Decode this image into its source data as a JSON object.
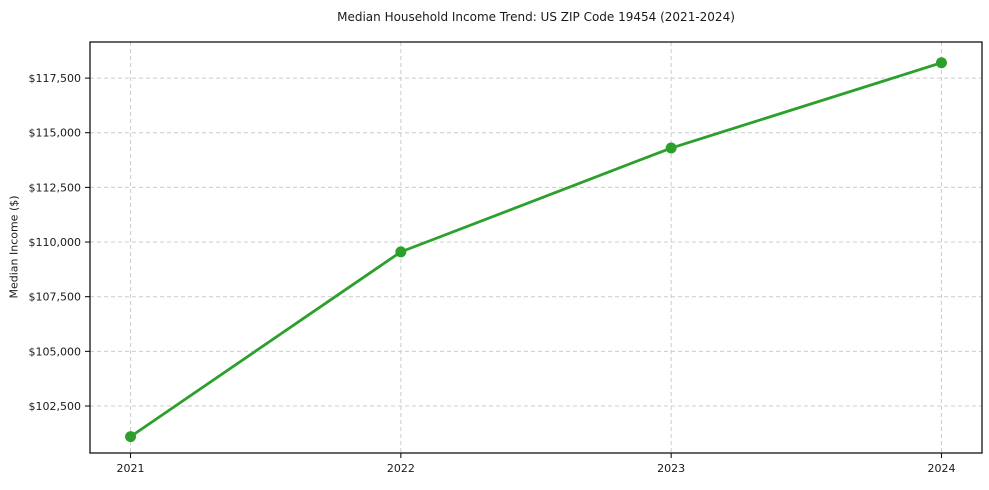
{
  "figure": {
    "title": "Median Household Income Trend: US ZIP Code 19454 (2021-2024)",
    "ylabel": "Median Income ($)"
  },
  "chart_data": {
    "type": "line",
    "title": "Median Household Income Trend: US ZIP Code 19454 (2021-2024)",
    "xlabel": "",
    "ylabel": "Median Income ($)",
    "x": [
      2021,
      2022,
      2023,
      2024
    ],
    "x_tick_labels": [
      "2021",
      "2022",
      "2023",
      "2024"
    ],
    "series": [
      {
        "name": "Median Household Income",
        "values": [
          101100,
          109550,
          114300,
          118200
        ]
      }
    ],
    "y_ticks": [
      102500,
      105000,
      107500,
      110000,
      112500,
      115000,
      117500
    ],
    "y_tick_labels": [
      "$102,500",
      "$105,000",
      "$107,500",
      "$110,000",
      "$112,500",
      "$115,000",
      "$117,500"
    ],
    "xlim": [
      2020.85,
      2024.15
    ],
    "ylim": [
      100350,
      119150
    ],
    "grid": true,
    "grid_color": "#cccccc",
    "grid_style": "dashed",
    "line_color": "#2ca02c",
    "marker": "circle",
    "marker_color": "#2ca02c",
    "spine_color": "#000000",
    "legend": "none"
  }
}
